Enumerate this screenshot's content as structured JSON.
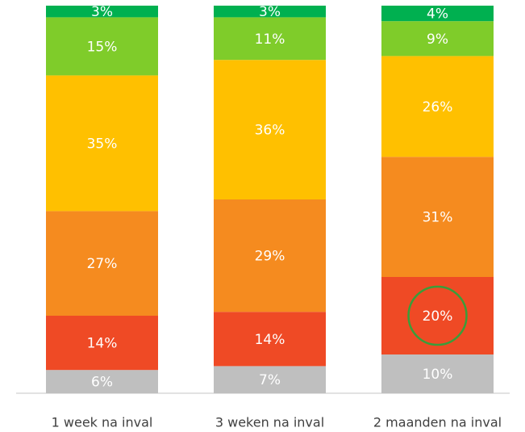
{
  "chart_data": {
    "type": "stacked_bar",
    "categories": [
      "1 week na inval",
      "3 weken na inval",
      "2 maanden na inval"
    ],
    "ylim": [
      0,
      100
    ],
    "series": [
      {
        "color": "#bfbfbf",
        "values": [
          6,
          7,
          10
        ],
        "value_labels": [
          "6%",
          "7%",
          "10%"
        ]
      },
      {
        "color": "#ef4a25",
        "values": [
          14,
          14,
          20
        ],
        "value_labels": [
          "14%",
          "14%",
          "20%"
        ]
      },
      {
        "color": "#f58b1f",
        "values": [
          27,
          29,
          31
        ],
        "value_labels": [
          "27%",
          "29%",
          "31%"
        ]
      },
      {
        "color": "#ffc000",
        "values": [
          35,
          36,
          26
        ],
        "value_labels": [
          "35%",
          "36%",
          "26%"
        ]
      },
      {
        "color": "#7fcc2a",
        "values": [
          15,
          11,
          9
        ],
        "value_labels": [
          "15%",
          "11%",
          "9%"
        ]
      },
      {
        "color": "#00b050",
        "values": [
          3,
          3,
          4
        ],
        "value_labels": [
          "3%",
          "3%",
          "4%"
        ]
      }
    ]
  }
}
